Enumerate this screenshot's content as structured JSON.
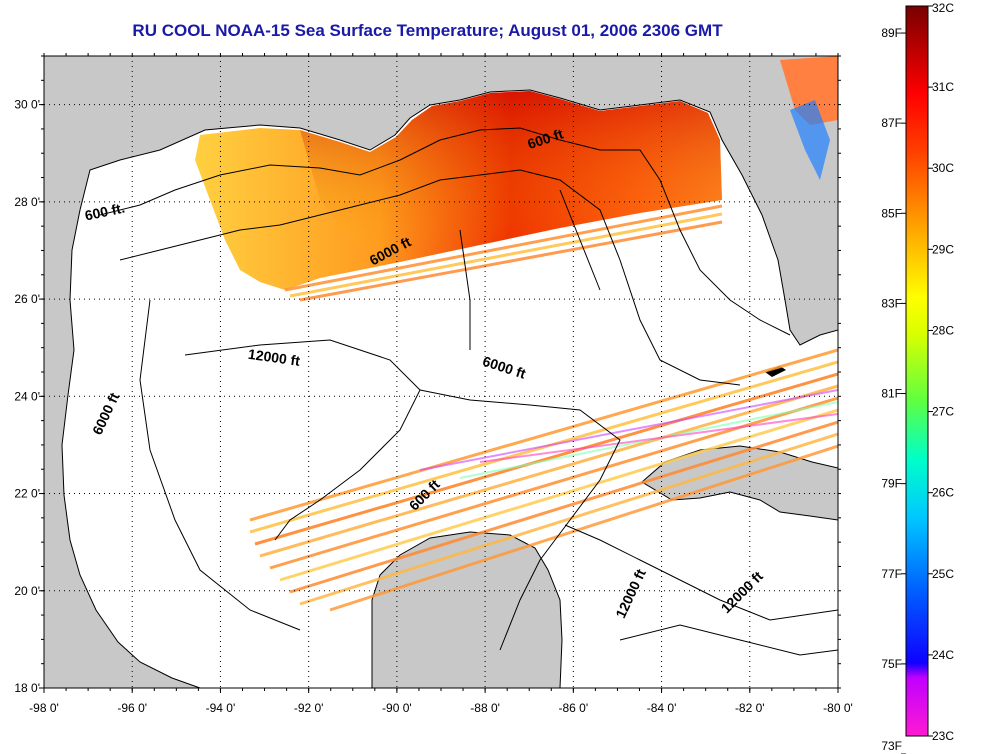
{
  "title": "RU COOL  NOAA-15  Sea Surface Temperature;  August 01, 2006 2306 GMT",
  "map": {
    "lon_range": [
      -98,
      -80
    ],
    "lat_range": [
      18,
      31
    ],
    "lon_ticks": [
      "-98 0'",
      "-96 0'",
      "-94 0'",
      "-92 0'",
      "-90 0'",
      "-88 0'",
      "-86 0'",
      "-84 0'",
      "-82 0'",
      "-80 0'"
    ],
    "lat_ticks": [
      "18 0'",
      "20 0'",
      "22 0'",
      "24 0'",
      "26 0'",
      "28 0'",
      "30 0'"
    ],
    "grid": "dotted",
    "land_color": "#c8c8c8",
    "water_color": "#ffffff"
  },
  "contour_labels": [
    {
      "text": "600 ft",
      "lon": -86.6,
      "lat": 29.2,
      "angle": -18
    },
    {
      "text": "600 ft.",
      "lon": -96.6,
      "lat": 27.7,
      "angle": -12
    },
    {
      "text": "6000 ft",
      "lon": -90.1,
      "lat": 26.9,
      "angle": -28
    },
    {
      "text": "12000 ft",
      "lon": -92.8,
      "lat": 24.7,
      "angle": 8
    },
    {
      "text": "6000 ft",
      "lon": -87.6,
      "lat": 24.5,
      "angle": 18
    },
    {
      "text": "6000 ft",
      "lon": -96.5,
      "lat": 23.6,
      "angle": -65
    },
    {
      "text": "600 ft",
      "lon": -89.3,
      "lat": 21.9,
      "angle": -45
    },
    {
      "text": "12000 ft",
      "lon": -84.6,
      "lat": 19.9,
      "angle": -65
    },
    {
      "text": "12000 ft",
      "lon": -82.1,
      "lat": 19.9,
      "angle": -45
    }
  ],
  "colorbar": {
    "celsius_labels": [
      "32C",
      "31C",
      "30C",
      "29C",
      "28C",
      "27C",
      "26C",
      "25C",
      "24C",
      "23C"
    ],
    "fahrenheit_labels": [
      "89F",
      "87F",
      "85F",
      "83F",
      "81F",
      "79F",
      "77F",
      "75F",
      "73F"
    ],
    "celsius_range": [
      23,
      32
    ],
    "fahrenheit_range": [
      73.4,
      89.6
    ],
    "colors": [
      "#ff1ad2",
      "#2000ff",
      "#00a8ff",
      "#00ffd0",
      "#b6ff00",
      "#ffff00",
      "#ff8000",
      "#ff1000",
      "#800000"
    ]
  }
}
